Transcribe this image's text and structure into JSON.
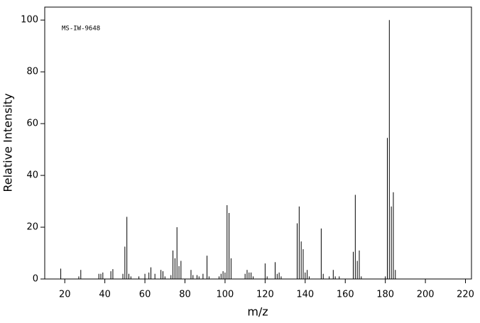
{
  "chart_data": {
    "type": "bar",
    "annotation": "MS-IW-9648",
    "x_label": "m/z",
    "y_label": "Relative Intensity",
    "x": [
      18,
      27,
      28,
      37,
      38,
      39,
      43,
      44,
      49,
      50,
      51,
      52,
      53,
      57,
      60,
      62,
      63,
      65,
      68,
      69,
      70,
      73,
      74,
      75,
      76,
      77,
      78,
      83,
      84,
      86,
      87,
      89,
      91,
      92,
      97,
      98,
      99,
      100,
      101,
      102,
      103,
      110,
      111,
      112,
      113,
      114,
      120,
      121,
      125,
      126,
      127,
      128,
      136,
      137,
      138,
      139,
      140,
      141,
      142,
      148,
      149,
      152,
      154,
      155,
      157,
      164,
      165,
      166,
      167,
      168,
      180,
      181,
      182,
      183,
      184,
      185
    ],
    "values": [
      4,
      1,
      3.5,
      2,
      2,
      2.5,
      3,
      3.8,
      2,
      12.5,
      24,
      2,
      1,
      1,
      2,
      2.5,
      4.5,
      2,
      3.5,
      3,
      1,
      1.5,
      11,
      8,
      20,
      5,
      7,
      3.5,
      1.5,
      1.5,
      1,
      2,
      9,
      1,
      1,
      2,
      3,
      2.5,
      28.5,
      25.5,
      8,
      2,
      3.5,
      2.5,
      2.5,
      1,
      6,
      1,
      6.5,
      2,
      2.5,
      1,
      21.5,
      28,
      14.5,
      11.5,
      2.5,
      3.5,
      1,
      19.5,
      2,
      1,
      3.5,
      1,
      1,
      10.5,
      32.5,
      7,
      11,
      1,
      1,
      54.5,
      100,
      28,
      33.5,
      3.5
    ],
    "color": "#000000",
    "xlim": [
      10,
      223
    ],
    "ylim": [
      0,
      105
    ],
    "xticks": [
      20,
      40,
      60,
      80,
      100,
      120,
      140,
      160,
      180,
      200,
      220
    ],
    "yticks": [
      0,
      20,
      40,
      60,
      80,
      100
    ]
  }
}
